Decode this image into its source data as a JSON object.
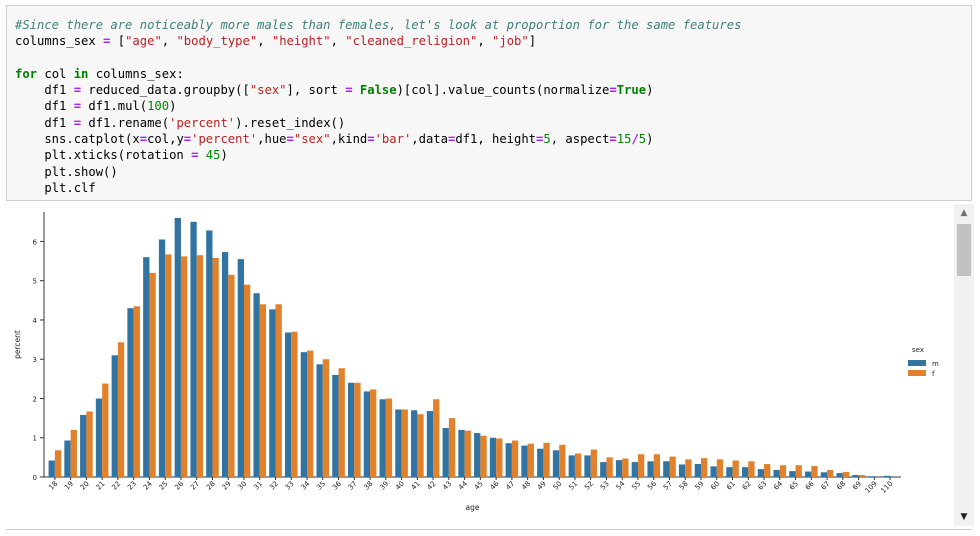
{
  "code": {
    "lines": [
      [
        [
          "cm",
          "#Since there are noticeably more males than females, let's look at proportion for the same features"
        ]
      ],
      [
        [
          "",
          "columns_sex "
        ],
        [
          "op",
          "="
        ],
        [
          "",
          " ["
        ],
        [
          "st",
          "\"age\""
        ],
        [
          "",
          ", "
        ],
        [
          "st",
          "\"body_type\""
        ],
        [
          "",
          ", "
        ],
        [
          "st",
          "\"height\""
        ],
        [
          "",
          ", "
        ],
        [
          "st",
          "\"cleaned_religion\""
        ],
        [
          "",
          ", "
        ],
        [
          "st",
          "\"job\""
        ],
        [
          "",
          "]"
        ]
      ],
      [
        [
          "",
          ""
        ]
      ],
      [
        [
          "kw",
          "for"
        ],
        [
          "",
          " col "
        ],
        [
          "kw",
          "in"
        ],
        [
          "",
          " columns_sex:"
        ]
      ],
      [
        [
          "",
          "    df1 "
        ],
        [
          "op",
          "="
        ],
        [
          "",
          " reduced_data.groupby(["
        ],
        [
          "st",
          "\"sex\""
        ],
        [
          "",
          "], sort "
        ],
        [
          "op",
          "="
        ],
        [
          "",
          " "
        ],
        [
          "kw",
          "False"
        ],
        [
          "",
          ")[col].value_counts(normalize"
        ],
        [
          "op",
          "="
        ],
        [
          "kw",
          "True"
        ],
        [
          "",
          ")"
        ]
      ],
      [
        [
          "",
          "    df1 "
        ],
        [
          "op",
          "="
        ],
        [
          "",
          " df1.mul("
        ],
        [
          "nm",
          "100"
        ],
        [
          "",
          ")"
        ]
      ],
      [
        [
          "",
          "    df1 "
        ],
        [
          "op",
          "="
        ],
        [
          "",
          " df1.rename("
        ],
        [
          "st",
          "'percent'"
        ],
        [
          "",
          ").reset_index()"
        ]
      ],
      [
        [
          "",
          "    sns.catplot(x"
        ],
        [
          "op",
          "="
        ],
        [
          "",
          "col,y"
        ],
        [
          "op",
          "="
        ],
        [
          "st",
          "'percent'"
        ],
        [
          "",
          ",hue"
        ],
        [
          "op",
          "="
        ],
        [
          "st",
          "\"sex\""
        ],
        [
          "",
          ",kind"
        ],
        [
          "op",
          "="
        ],
        [
          "st",
          "'bar'"
        ],
        [
          "",
          ",data"
        ],
        [
          "op",
          "="
        ],
        [
          "",
          "df1, height"
        ],
        [
          "op",
          "="
        ],
        [
          "nm",
          "5"
        ],
        [
          "",
          ", aspect"
        ],
        [
          "op",
          "="
        ],
        [
          "nm",
          "15"
        ],
        [
          "op",
          "/"
        ],
        [
          "nm",
          "5"
        ],
        [
          "",
          ")"
        ]
      ],
      [
        [
          "",
          "    plt.xticks(rotation "
        ],
        [
          "op",
          "="
        ],
        [
          "",
          " "
        ],
        [
          "nm",
          "45"
        ],
        [
          "",
          ")"
        ]
      ],
      [
        [
          "",
          "    plt.show()"
        ]
      ],
      [
        [
          "",
          "    plt.clf"
        ]
      ]
    ]
  },
  "chart_data": {
    "type": "bar",
    "xlabel": "age",
    "ylabel": "percent",
    "ylim": [
      0,
      6.75
    ],
    "yticks": [
      0,
      1,
      2,
      3,
      4,
      5,
      6
    ],
    "legend": {
      "title": "sex",
      "placement": "right"
    },
    "categories": [
      "18",
      "19",
      "20",
      "21",
      "22",
      "23",
      "24",
      "25",
      "26",
      "27",
      "28",
      "29",
      "30",
      "31",
      "32",
      "33",
      "34",
      "35",
      "36",
      "37",
      "38",
      "39",
      "40",
      "41",
      "42",
      "43",
      "44",
      "45",
      "46",
      "47",
      "48",
      "49",
      "50",
      "51",
      "52",
      "53",
      "54",
      "55",
      "56",
      "57",
      "58",
      "59",
      "60",
      "61",
      "62",
      "63",
      "64",
      "65",
      "66",
      "67",
      "68",
      "69",
      "109",
      "110"
    ],
    "series": [
      {
        "name": "m",
        "color": "#3274a1",
        "values": [
          0.42,
          0.93,
          1.58,
          2.0,
          3.1,
          4.3,
          5.6,
          6.05,
          6.6,
          6.5,
          6.28,
          5.73,
          5.55,
          4.68,
          4.27,
          3.68,
          3.18,
          2.87,
          2.6,
          2.4,
          2.18,
          1.98,
          1.72,
          1.7,
          1.68,
          1.25,
          1.2,
          1.12,
          1.0,
          0.86,
          0.8,
          0.72,
          0.68,
          0.55,
          0.55,
          0.38,
          0.43,
          0.38,
          0.4,
          0.4,
          0.32,
          0.33,
          0.27,
          0.25,
          0.25,
          0.2,
          0.18,
          0.15,
          0.14,
          0.12,
          0.1,
          0.05,
          0.02,
          0.03
        ]
      },
      {
        "name": "f",
        "color": "#e1812c",
        "values": [
          0.68,
          1.2,
          1.67,
          2.38,
          3.43,
          4.35,
          5.2,
          5.67,
          5.62,
          5.65,
          5.58,
          5.15,
          4.9,
          4.4,
          4.4,
          3.7,
          3.22,
          3.0,
          2.77,
          2.4,
          2.23,
          2.0,
          1.72,
          1.6,
          1.98,
          1.5,
          1.18,
          1.05,
          0.98,
          0.93,
          0.85,
          0.87,
          0.82,
          0.6,
          0.7,
          0.5,
          0.47,
          0.58,
          0.58,
          0.52,
          0.45,
          0.48,
          0.45,
          0.42,
          0.4,
          0.33,
          0.3,
          0.3,
          0.28,
          0.18,
          0.13,
          0.05,
          0.0,
          0.0
        ]
      }
    ]
  },
  "scrollbar": {
    "up_glyph": "▲",
    "down_glyph": "▼"
  }
}
